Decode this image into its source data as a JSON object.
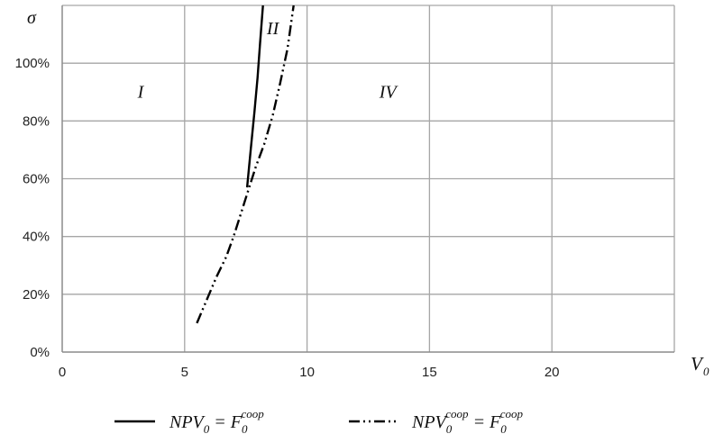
{
  "chart_data": {
    "type": "line",
    "xlabel": "V",
    "xlabel_sub": "0",
    "ylabel": "σ",
    "xlim": [
      0,
      25
    ],
    "ylim": [
      0,
      1.2
    ],
    "x_ticks": [
      0,
      5,
      10,
      15,
      20
    ],
    "x_tick_labels": [
      "0",
      "5",
      "10",
      "15",
      "20"
    ],
    "y_ticks": [
      0,
      0.2,
      0.4,
      0.6,
      0.8,
      1.0
    ],
    "y_tick_labels": [
      "0%",
      "20%",
      "40%",
      "60%",
      "80%",
      "100%"
    ],
    "grid": true,
    "legend_position": "bottom",
    "region_labels": [
      {
        "text": "I",
        "x": 3.2,
        "y": 0.88
      },
      {
        "text": "II",
        "x": 8.6,
        "y": 1.1
      },
      {
        "text": "IV",
        "x": 13.3,
        "y": 0.88
      }
    ],
    "series": [
      {
        "name": "NPV0 = F0coop",
        "legend_parts": [
          "NPV",
          "0",
          " = F",
          "0",
          "coop"
        ],
        "style": "solid",
        "color": "#000000",
        "x": [
          7.55,
          7.7,
          7.85,
          7.98,
          8.08,
          8.2
        ],
        "y": [
          0.57,
          0.7,
          0.83,
          0.95,
          1.07,
          1.2
        ]
      },
      {
        "name": "NPV0coop = F0coop",
        "legend_parts": [
          "NPV",
          "0",
          "coop",
          " = F",
          "0",
          "coop"
        ],
        "style": "dash-dot-dot",
        "color": "#000000",
        "x": [
          5.5,
          5.9,
          6.3,
          6.7,
          7.0,
          7.3,
          7.6,
          7.9,
          8.25,
          8.6,
          8.9,
          9.2,
          9.45
        ],
        "y": [
          0.1,
          0.18,
          0.26,
          0.33,
          0.4,
          0.48,
          0.56,
          0.64,
          0.72,
          0.82,
          0.93,
          1.05,
          1.2
        ]
      }
    ]
  }
}
